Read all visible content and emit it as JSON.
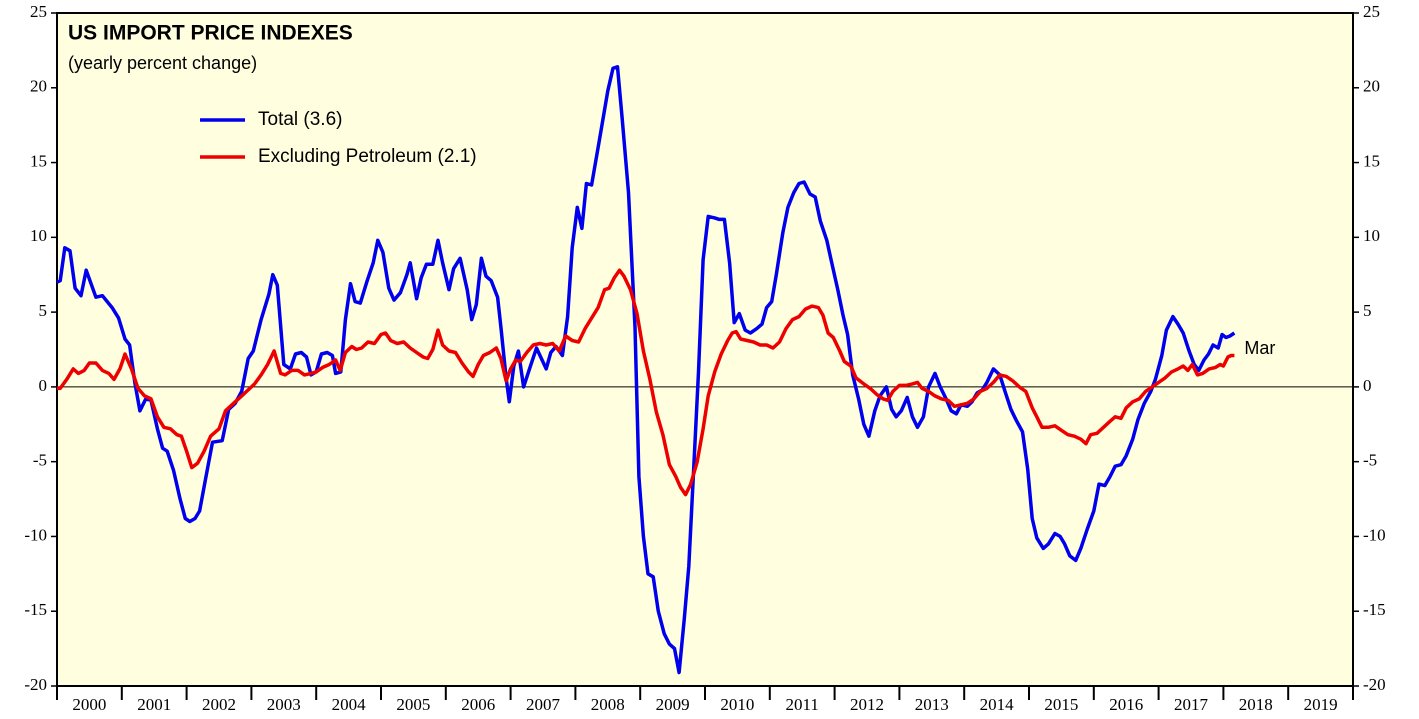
{
  "chart_data": {
    "type": "line",
    "title": "US IMPORT PRICE INDEXES",
    "subtitle": "(yearly percent change)",
    "annotation": {
      "text": "Mar",
      "color": "#ff0000"
    },
    "xlim": [
      2000,
      2020
    ],
    "xticks": [
      2000,
      2001,
      2002,
      2003,
      2004,
      2005,
      2006,
      2007,
      2008,
      2009,
      2010,
      2011,
      2012,
      2013,
      2014,
      2015,
      2016,
      2017,
      2018,
      2019,
      2020
    ],
    "xtick_labels": [
      2000,
      2001,
      2002,
      2003,
      2004,
      2005,
      2006,
      2007,
      2008,
      2009,
      2010,
      2011,
      2012,
      2013,
      2014,
      2015,
      2016,
      2017,
      2018,
      2019
    ],
    "ylim": [
      -20,
      25
    ],
    "yticks": [
      -20,
      -15,
      -10,
      -5,
      0,
      5,
      10,
      15,
      20,
      25
    ],
    "zero_line": true,
    "background": "#ffffe0",
    "series": [
      {
        "name": "Total (3.6)",
        "color": "#0000ee",
        "x": [
          2000.0,
          2000.05,
          2000.12,
          2000.2,
          2000.28,
          2000.37,
          2000.45,
          2000.6,
          2000.7,
          2000.85,
          2000.95,
          2001.05,
          2001.12,
          2001.2,
          2001.28,
          2001.37,
          2001.45,
          2001.55,
          2001.63,
          2001.7,
          2001.8,
          2001.9,
          2001.98,
          2002.05,
          2002.13,
          2002.2,
          2002.3,
          2002.4,
          2002.55,
          2002.65,
          2002.75,
          2002.85,
          2002.95,
          2003.03,
          2003.15,
          2003.27,
          2003.33,
          2003.4,
          2003.5,
          2003.6,
          2003.68,
          2003.77,
          2003.85,
          2003.92,
          2004.0,
          2004.08,
          2004.17,
          2004.25,
          2004.3,
          2004.38,
          2004.45,
          2004.53,
          2004.6,
          2004.68,
          2004.78,
          2004.88,
          2004.95,
          2005.03,
          2005.12,
          2005.2,
          2005.3,
          2005.4,
          2005.45,
          2005.55,
          2005.62,
          2005.7,
          2005.8,
          2005.88,
          2005.95,
          2006.05,
          2006.12,
          2006.22,
          2006.33,
          2006.4,
          2006.47,
          2006.55,
          2006.62,
          2006.7,
          2006.8,
          2006.85,
          2006.93,
          2006.98,
          2007.05,
          2007.12,
          2007.2,
          2007.3,
          2007.4,
          2007.55,
          2007.62,
          2007.7,
          2007.8,
          2007.88,
          2007.95,
          2008.03,
          2008.1,
          2008.17,
          2008.25,
          2008.37,
          2008.5,
          2008.58,
          2008.65,
          2008.72,
          2008.82,
          2008.92,
          2008.98,
          2009.05,
          2009.12,
          2009.2,
          2009.28,
          2009.37,
          2009.45,
          2009.53,
          2009.6,
          2009.68,
          2009.75,
          2009.82,
          2009.9,
          2009.97,
          2010.05,
          2010.15,
          2010.22,
          2010.3,
          2010.38,
          2010.45,
          2010.53,
          2010.62,
          2010.7,
          2010.8,
          2010.88,
          2010.95,
          2011.03,
          2011.1,
          2011.2,
          2011.28,
          2011.37,
          2011.45,
          2011.53,
          2011.62,
          2011.7,
          2011.78,
          2011.88,
          2011.95,
          2012.05,
          2012.13,
          2012.2,
          2012.28,
          2012.37,
          2012.45,
          2012.53,
          2012.62,
          2012.7,
          2012.8,
          2012.88,
          2012.95,
          2013.03,
          2013.12,
          2013.2,
          2013.28,
          2013.37,
          2013.45,
          2013.55,
          2013.63,
          2013.72,
          2013.8,
          2013.88,
          2013.95,
          2014.05,
          2014.12,
          2014.2,
          2014.28,
          2014.35,
          2014.45,
          2014.55,
          2014.63,
          2014.72,
          2014.8,
          2014.9,
          2014.98,
          2015.05,
          2015.12,
          2015.22,
          2015.3,
          2015.4,
          2015.48,
          2015.55,
          2015.63,
          2015.72,
          2015.8,
          2015.9,
          2016.0,
          2016.08,
          2016.17,
          2016.25,
          2016.33,
          2016.42,
          2016.5,
          2016.6,
          2016.68,
          2016.78,
          2016.88,
          2016.95,
          2017.05,
          2017.12,
          2017.22,
          2017.3,
          2017.38,
          2017.47,
          2017.55,
          2017.62,
          2017.7,
          2017.77,
          2017.84,
          2017.92,
          2017.98,
          2018.04,
          2018.1,
          2018.17
        ],
        "values": [
          7.0,
          7.1,
          9.3,
          9.1,
          6.6,
          6.1,
          7.8,
          6.0,
          6.1,
          5.3,
          4.6,
          3.2,
          2.8,
          0.3,
          -1.6,
          -0.8,
          -0.9,
          -2.8,
          -4.1,
          -4.3,
          -5.6,
          -7.5,
          -8.8,
          -9.0,
          -8.8,
          -8.3,
          -6.0,
          -3.7,
          -3.6,
          -1.5,
          -1.1,
          -0.3,
          1.9,
          2.4,
          4.5,
          6.2,
          7.5,
          6.8,
          1.5,
          1.2,
          2.2,
          2.3,
          2.0,
          0.8,
          1.0,
          2.2,
          2.3,
          2.1,
          0.9,
          1.0,
          4.5,
          6.9,
          5.7,
          5.6,
          7.0,
          8.3,
          9.8,
          9.0,
          6.6,
          5.8,
          6.3,
          7.5,
          8.3,
          5.9,
          7.3,
          8.2,
          8.2,
          9.8,
          8.3,
          6.5,
          7.9,
          8.6,
          6.5,
          4.5,
          5.5,
          8.6,
          7.4,
          7.1,
          6.0,
          4.0,
          0.6,
          -1.0,
          1.4,
          2.4,
          0.0,
          1.3,
          2.6,
          1.2,
          2.3,
          2.7,
          2.1,
          4.7,
          9.3,
          12.0,
          10.6,
          13.6,
          13.5,
          16.5,
          19.8,
          21.3,
          21.4,
          18.0,
          13.0,
          4.0,
          -6.0,
          -10.0,
          -12.5,
          -12.7,
          -15.0,
          -16.5,
          -17.2,
          -17.5,
          -19.1,
          -15.5,
          -12.0,
          -6.0,
          1.0,
          8.5,
          11.4,
          11.3,
          11.2,
          11.2,
          8.3,
          4.3,
          4.9,
          3.8,
          3.6,
          3.9,
          4.2,
          5.3,
          5.7,
          7.5,
          10.3,
          12.0,
          13.0,
          13.6,
          13.7,
          12.9,
          12.7,
          11.1,
          9.8,
          8.4,
          6.5,
          4.8,
          3.5,
          0.8,
          -0.8,
          -2.5,
          -3.3,
          -1.6,
          -0.6,
          0.0,
          -1.5,
          -2.0,
          -1.6,
          -0.7,
          -2.0,
          -2.7,
          -2.0,
          0.0,
          0.9,
          0.0,
          -0.8,
          -1.6,
          -1.8,
          -1.2,
          -1.3,
          -1.0,
          -0.4,
          -0.2,
          0.3,
          1.2,
          0.8,
          -0.3,
          -1.5,
          -2.2,
          -3.0,
          -5.5,
          -8.8,
          -10.1,
          -10.8,
          -10.5,
          -9.8,
          -10.0,
          -10.5,
          -11.3,
          -11.6,
          -10.8,
          -9.5,
          -8.3,
          -6.5,
          -6.6,
          -6.0,
          -5.3,
          -5.2,
          -4.6,
          -3.5,
          -2.2,
          -1.1,
          -0.3,
          0.5,
          2.1,
          3.8,
          4.7,
          4.2,
          3.6,
          2.4,
          1.5,
          1.1,
          1.8,
          2.2,
          2.8,
          2.6,
          3.5,
          3.3,
          3.4,
          3.6
        ]
      },
      {
        "name": "Excluding Petroleum (2.1)",
        "color": "#ee0000",
        "x": [
          2000.0,
          2000.05,
          2000.15,
          2000.25,
          2000.33,
          2000.42,
          2000.5,
          2000.6,
          2000.7,
          2000.8,
          2000.88,
          2000.97,
          2001.05,
          2001.15,
          2001.25,
          2001.35,
          2001.45,
          2001.55,
          2001.65,
          2001.75,
          2001.85,
          2001.92,
          2002.0,
          2002.08,
          2002.17,
          2002.27,
          2002.37,
          2002.5,
          2002.6,
          2002.75,
          2002.85,
          2002.95,
          2003.05,
          2003.15,
          2003.25,
          2003.35,
          2003.45,
          2003.52,
          2003.62,
          2003.72,
          2003.82,
          2003.92,
          2004.0,
          2004.1,
          2004.2,
          2004.3,
          2004.37,
          2004.45,
          2004.55,
          2004.62,
          2004.7,
          2004.8,
          2004.9,
          2005.0,
          2005.07,
          2005.15,
          2005.25,
          2005.35,
          2005.45,
          2005.55,
          2005.65,
          2005.72,
          2005.8,
          2005.88,
          2005.95,
          2006.05,
          2006.15,
          2006.25,
          2006.35,
          2006.42,
          2006.5,
          2006.58,
          2006.68,
          2006.78,
          2006.85,
          2006.93,
          2007.0,
          2007.08,
          2007.15,
          2007.25,
          2007.35,
          2007.45,
          2007.55,
          2007.65,
          2007.75,
          2007.85,
          2007.95,
          2008.05,
          2008.15,
          2008.25,
          2008.35,
          2008.45,
          2008.52,
          2008.6,
          2008.68,
          2008.75,
          2008.85,
          2008.95,
          2009.05,
          2009.15,
          2009.25,
          2009.35,
          2009.45,
          2009.55,
          2009.62,
          2009.7,
          2009.78,
          2009.88,
          2009.97,
          2010.05,
          2010.15,
          2010.25,
          2010.35,
          2010.42,
          2010.48,
          2010.55,
          2010.65,
          2010.75,
          2010.85,
          2010.95,
          2011.05,
          2011.15,
          2011.25,
          2011.35,
          2011.45,
          2011.55,
          2011.65,
          2011.75,
          2011.82,
          2011.9,
          2011.98,
          2012.08,
          2012.15,
          2012.25,
          2012.33,
          2012.45,
          2012.55,
          2012.65,
          2012.75,
          2012.82,
          2012.9,
          2013.0,
          2013.1,
          2013.2,
          2013.28,
          2013.35,
          2013.45,
          2013.55,
          2013.65,
          2013.75,
          2013.85,
          2013.95,
          2014.05,
          2014.15,
          2014.25,
          2014.35,
          2014.45,
          2014.55,
          2014.65,
          2014.75,
          2014.85,
          2014.95,
          2015.05,
          2015.12,
          2015.2,
          2015.3,
          2015.4,
          2015.5,
          2015.6,
          2015.7,
          2015.8,
          2015.88,
          2015.95,
          2016.05,
          2016.15,
          2016.25,
          2016.33,
          2016.42,
          2016.5,
          2016.6,
          2016.7,
          2016.8,
          2016.9,
          2017.0,
          2017.1,
          2017.2,
          2017.3,
          2017.38,
          2017.45,
          2017.52,
          2017.6,
          2017.68,
          2017.78,
          2017.88,
          2017.95,
          2018.0,
          2018.07,
          2018.12,
          2018.17
        ],
        "values": [
          -0.1,
          -0.1,
          0.5,
          1.2,
          0.9,
          1.1,
          1.6,
          1.6,
          1.1,
          0.9,
          0.5,
          1.2,
          2.2,
          1.2,
          -0.1,
          -0.6,
          -0.8,
          -2.0,
          -2.7,
          -2.8,
          -3.2,
          -3.3,
          -4.3,
          -5.4,
          -5.1,
          -4.3,
          -3.3,
          -2.8,
          -1.6,
          -1.0,
          -0.6,
          -0.2,
          0.2,
          0.8,
          1.5,
          2.4,
          0.9,
          0.8,
          1.1,
          1.1,
          0.8,
          0.9,
          1.0,
          1.3,
          1.5,
          1.8,
          1.1,
          2.3,
          2.7,
          2.5,
          2.6,
          3.0,
          2.9,
          3.5,
          3.6,
          3.1,
          2.9,
          3.0,
          2.6,
          2.3,
          2.0,
          1.9,
          2.5,
          3.8,
          2.8,
          2.4,
          2.3,
          1.6,
          1.0,
          0.7,
          1.5,
          2.1,
          2.3,
          2.6,
          1.9,
          0.4,
          1.2,
          1.8,
          1.7,
          2.3,
          2.8,
          2.9,
          2.8,
          2.9,
          2.4,
          3.4,
          3.1,
          3.0,
          3.9,
          4.6,
          5.3,
          6.5,
          6.6,
          7.3,
          7.8,
          7.4,
          6.5,
          4.9,
          2.4,
          0.5,
          -1.7,
          -3.2,
          -5.2,
          -6.0,
          -6.7,
          -7.2,
          -6.5,
          -5.0,
          -2.8,
          -0.6,
          1.0,
          2.2,
          3.1,
          3.6,
          3.7,
          3.2,
          3.1,
          3.0,
          2.8,
          2.8,
          2.6,
          3.0,
          3.9,
          4.5,
          4.7,
          5.2,
          5.4,
          5.3,
          4.8,
          3.6,
          3.3,
          2.4,
          1.7,
          1.4,
          0.6,
          0.2,
          -0.1,
          -0.5,
          -0.8,
          -0.9,
          -0.3,
          0.1,
          0.1,
          0.2,
          0.3,
          -0.1,
          -0.3,
          -0.6,
          -0.8,
          -0.9,
          -1.3,
          -1.2,
          -1.1,
          -0.8,
          -0.3,
          -0.1,
          0.3,
          0.8,
          0.7,
          0.4,
          0.0,
          -0.3,
          -1.4,
          -2.0,
          -2.7,
          -2.7,
          -2.6,
          -2.9,
          -3.2,
          -3.3,
          -3.5,
          -3.8,
          -3.2,
          -3.1,
          -2.7,
          -2.3,
          -2.0,
          -2.1,
          -1.4,
          -1.0,
          -0.8,
          -0.3,
          0.0,
          0.3,
          0.6,
          1.0,
          1.2,
          1.4,
          1.1,
          1.5,
          0.8,
          0.9,
          1.2,
          1.3,
          1.5,
          1.4,
          2.0,
          2.1,
          2.1
        ]
      }
    ]
  }
}
